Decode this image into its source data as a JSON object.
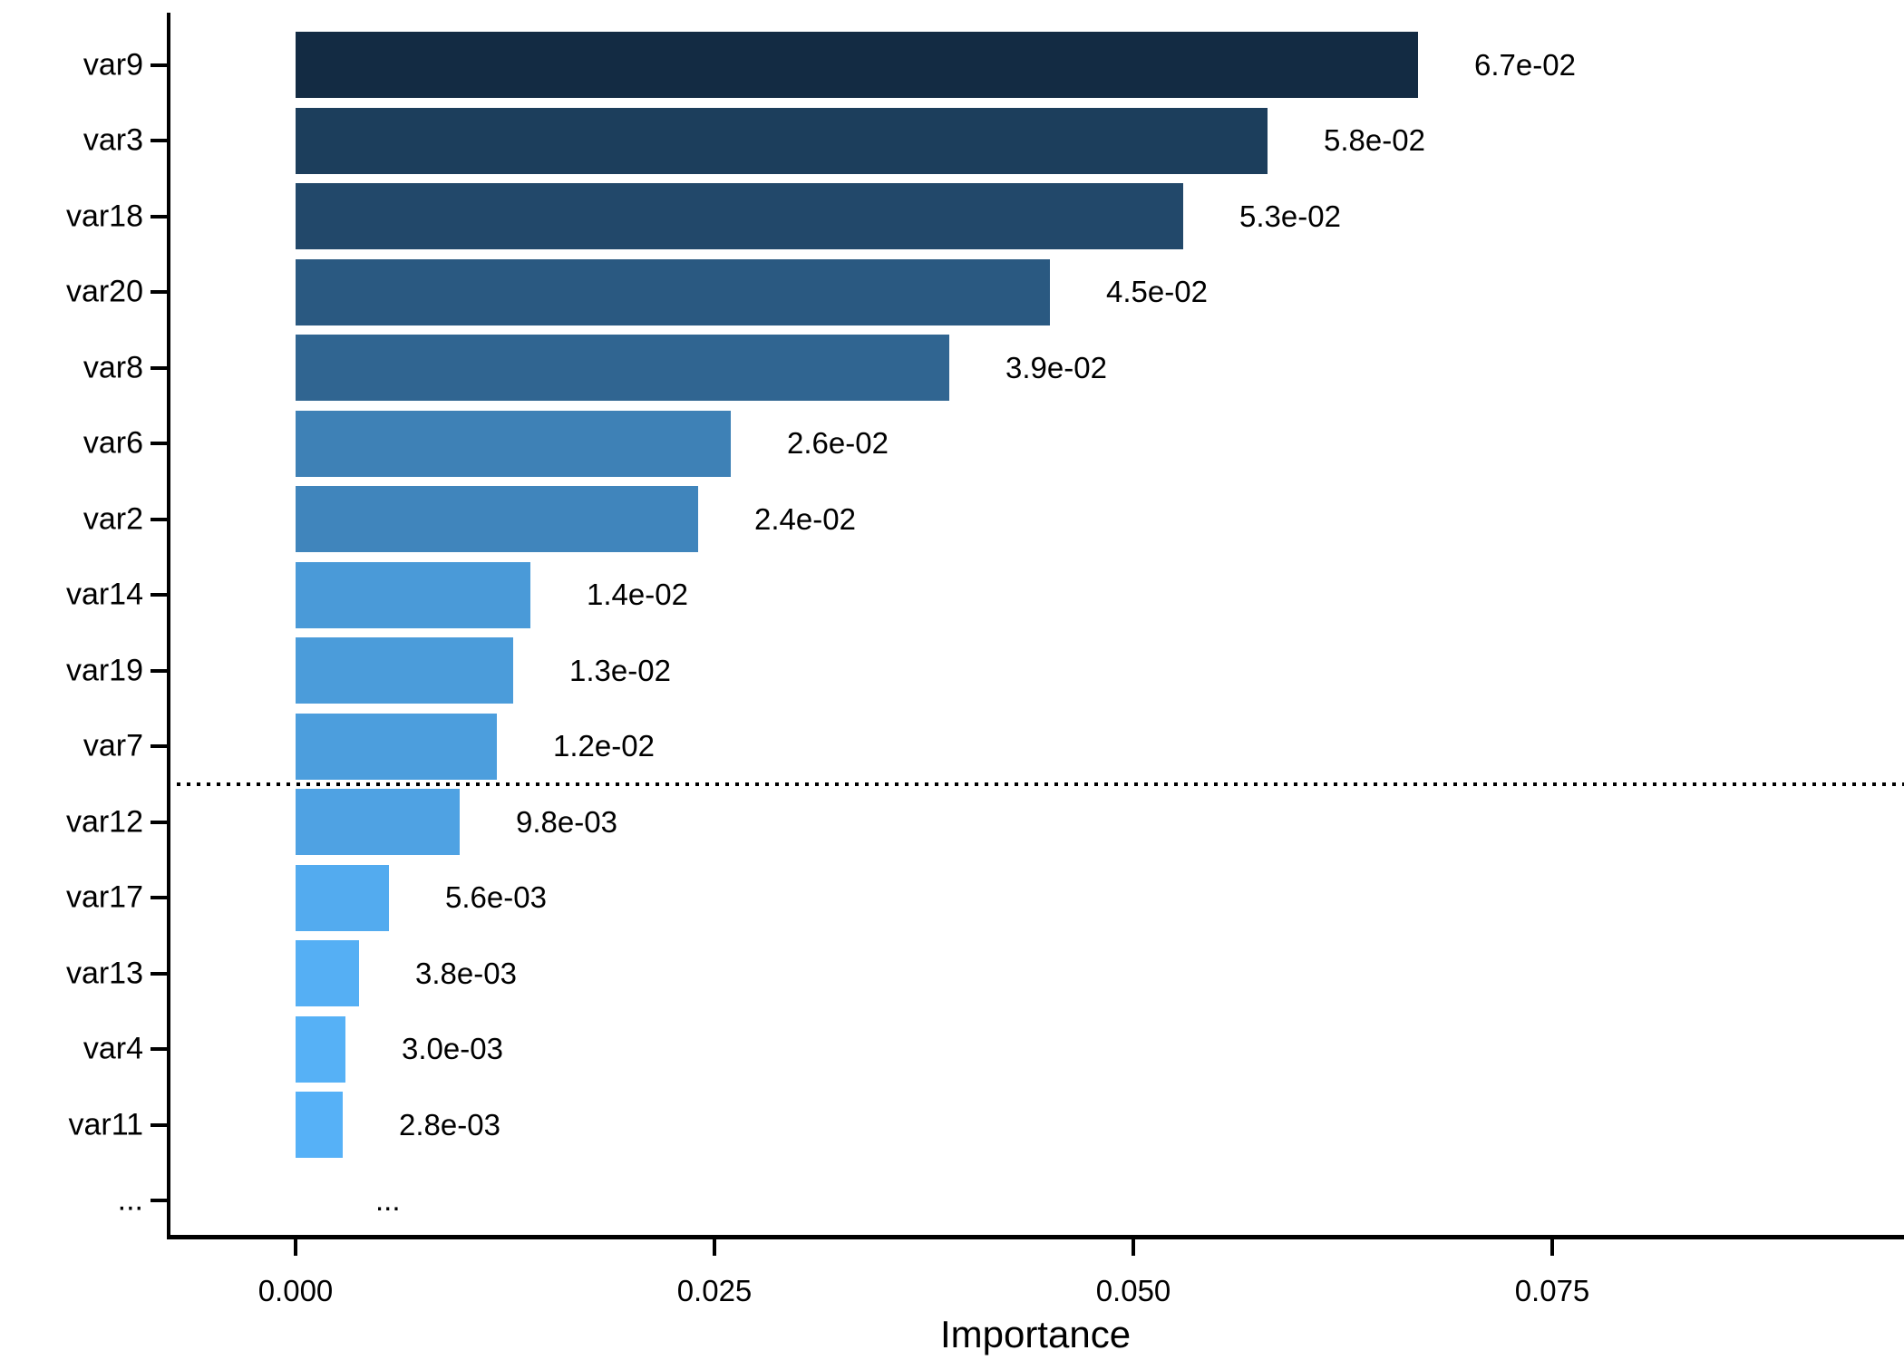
{
  "chart_data": {
    "type": "bar",
    "orientation": "horizontal",
    "title": "",
    "xlabel": "Importance",
    "ylabel": "",
    "categories": [
      "var9",
      "var3",
      "var18",
      "var20",
      "var8",
      "var6",
      "var2",
      "var14",
      "var19",
      "var7",
      "var12",
      "var17",
      "var13",
      "var4",
      "var11",
      "..."
    ],
    "values": [
      0.067,
      0.058,
      0.053,
      0.045,
      0.039,
      0.026,
      0.024,
      0.014,
      0.013,
      0.012,
      0.0098,
      0.0056,
      0.0038,
      0.003,
      0.0028,
      null
    ],
    "value_labels": [
      "6.7e-02",
      "5.8e-02",
      "5.3e-02",
      "4.5e-02",
      "3.9e-02",
      "2.6e-02",
      "2.4e-02",
      "1.4e-02",
      "1.3e-02",
      "1.2e-02",
      "9.8e-03",
      "5.6e-03",
      "3.8e-03",
      "3.0e-03",
      "2.8e-03",
      "..."
    ],
    "bar_colors": [
      "#132B43",
      "#1C3E5C",
      "#22486A",
      "#2A5981",
      "#306591",
      "#3E81B6",
      "#4085BC",
      "#4A9AD8",
      "#4B9CDA",
      "#4C9EDD",
      "#4FA2E3",
      "#53ABEF",
      "#55AFF4",
      "#56B1F6",
      "#56B1F7",
      null
    ],
    "x_ticks": [
      "0.000",
      "0.025",
      "0.050",
      "0.075"
    ],
    "x_tick_values": [
      0,
      0.025,
      0.05,
      0.075
    ],
    "xlim": [
      -0.0075,
      0.096
    ],
    "grid": "off",
    "legend": "none",
    "threshold_line": {
      "after_category_index": 9,
      "style": "dotted",
      "color": "#000000"
    },
    "colors": {
      "gradient_high_importance": "#132B43",
      "gradient_low_importance": "#56B1F7",
      "axis": "#000000",
      "text": "#000000",
      "background": "#FFFFFF"
    }
  }
}
